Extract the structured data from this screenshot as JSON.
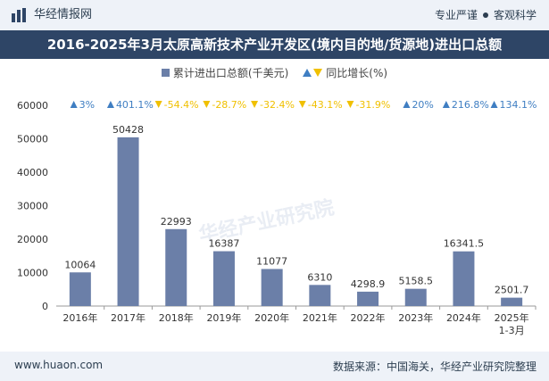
{
  "header": {
    "brand": "华经情报网",
    "slogan_left": "专业严谨",
    "slogan_right": "客观科学"
  },
  "title": "2016-2025年3月太原高新技术产业开发区(境内目的地/货源地)进出口总额",
  "legend": {
    "bar_label": "累计进出口总额(千美元)",
    "growth_label": "同比增长(%)"
  },
  "colors": {
    "bar": "#6b7fa8",
    "up": "#3f7ec2",
    "down": "#f0c000",
    "header_bg": "#2e4566"
  },
  "chart_data": {
    "type": "bar",
    "categories": [
      "2016年",
      "2017年",
      "2018年",
      "2019年",
      "2020年",
      "2021年",
      "2022年",
      "2023年",
      "2024年",
      "2025年\n1-3月"
    ],
    "series": [
      {
        "name": "累计进出口总额(千美元)",
        "values": [
          10064,
          50428,
          22993,
          16387,
          11077,
          6310,
          4298.9,
          5158.5,
          16341.5,
          2501.7
        ]
      }
    ],
    "value_labels": [
      "10064",
      "50428",
      "22993",
      "16387",
      "11077",
      "6310",
      "4298.9",
      "5158.5",
      "16341.5",
      "2501.7"
    ],
    "growth": [
      {
        "value": "3%",
        "direction": "up"
      },
      {
        "value": "401.1%",
        "direction": "up"
      },
      {
        "value": "-54.4%",
        "direction": "down"
      },
      {
        "value": "-28.7%",
        "direction": "down"
      },
      {
        "value": "-32.4%",
        "direction": "down"
      },
      {
        "value": "-43.1%",
        "direction": "down"
      },
      {
        "value": "-31.9%",
        "direction": "down"
      },
      {
        "value": "20%",
        "direction": "up"
      },
      {
        "value": "216.8%",
        "direction": "up"
      },
      {
        "value": "134.1%",
        "direction": "up"
      }
    ],
    "ylim": [
      0,
      60000
    ],
    "yticks": [
      "0",
      "10000",
      "20000",
      "30000",
      "40000",
      "50000",
      "60000"
    ],
    "grid": false
  },
  "watermark": "华经产业研究院",
  "footer": {
    "url": "www.huaon.com",
    "source": "数据来源：中国海关，华经产业研究院整理"
  }
}
